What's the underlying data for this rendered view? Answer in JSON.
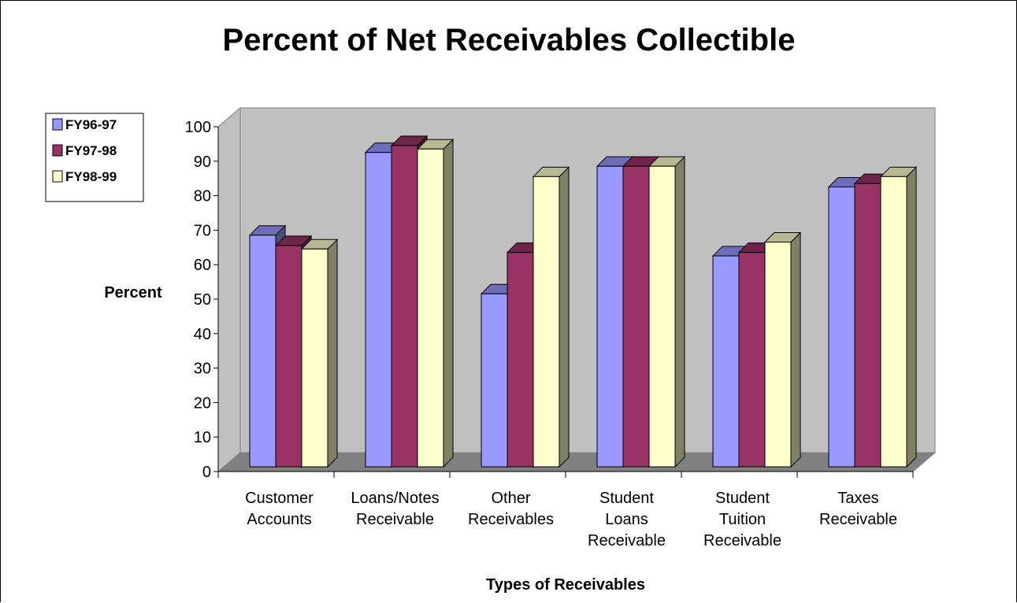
{
  "chart_data": {
    "type": "bar",
    "title": "Percent of Net Receivables Collectible",
    "xlabel": "Types of Receivables",
    "ylabel": "Percent",
    "ylim": [
      0,
      100
    ],
    "yticks": [
      "0",
      "10",
      "20",
      "30",
      "40",
      "50",
      "60",
      "70",
      "80",
      "90",
      "100"
    ],
    "categories": [
      [
        "Customer",
        "Accounts"
      ],
      [
        "Loans/Notes",
        "Receivable"
      ],
      [
        "Other",
        "Receivables"
      ],
      [
        "Student",
        "Loans",
        "Receivable"
      ],
      [
        "Student",
        "Tuition",
        "Receivable"
      ],
      [
        "Taxes",
        "Receivable"
      ]
    ],
    "series": [
      {
        "name": "FY96-97",
        "values": [
          69,
          93,
          52,
          89,
          63,
          83
        ],
        "color": "#9999ff"
      },
      {
        "name": "FY97-98",
        "values": [
          66,
          95,
          64,
          89,
          64,
          84
        ],
        "color": "#993366"
      },
      {
        "name": "FY98-99",
        "values": [
          65,
          94,
          86,
          89,
          67,
          86
        ],
        "color": "#ffffcc"
      }
    ],
    "legend_position": "left",
    "grid": false,
    "style": "3d-clustered-column",
    "wall_color": "#c0c0c0",
    "floor_color": "#808080"
  }
}
